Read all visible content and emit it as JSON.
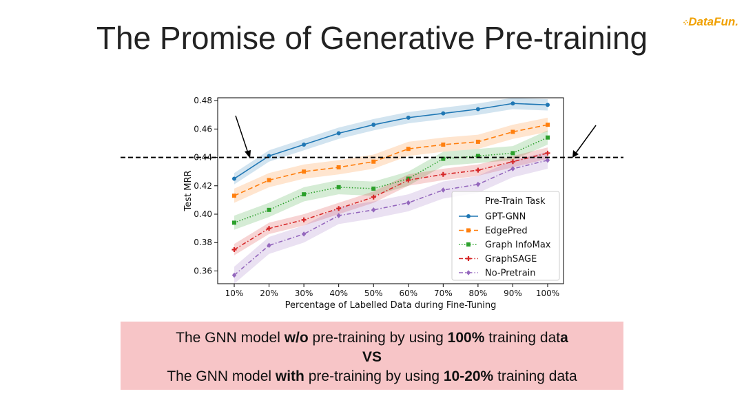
{
  "slide": {
    "title": "The Promise of Generative Pre-training",
    "logo": "DataFun."
  },
  "callout": {
    "line1_a": "The GNN model ",
    "line1_b": "w/o",
    "line1_c": " pre-training by using ",
    "line1_d": "100%",
    "line1_e": " training dat",
    "line1_f": "a",
    "line2": "VS",
    "line3_a": "The GNN model ",
    "line3_b": "with",
    "line3_c": " pre-training by using ",
    "line3_d": "10-20%",
    "line3_e": " training data"
  },
  "chart_data": {
    "type": "line",
    "title": "",
    "xlabel": "Percentage of Labelled Data during Fine-Tuning",
    "ylabel": "Test MRR",
    "categories": [
      "10%",
      "20%",
      "30%",
      "40%",
      "50%",
      "60%",
      "70%",
      "80%",
      "90%",
      "100%"
    ],
    "ylim": [
      0.351,
      0.482
    ],
    "yticks": [
      0.36,
      0.38,
      0.4,
      0.42,
      0.44,
      0.46,
      0.48
    ],
    "reference_line": 0.44,
    "legend_title": "Pre-Train Task",
    "legend_position": "bottom-right",
    "series": [
      {
        "name": "GPT-GNN",
        "color": "#1f77b4",
        "dash": "solid",
        "marker": "circle",
        "values": [
          0.425,
          0.441,
          0.449,
          0.457,
          0.463,
          0.468,
          0.471,
          0.474,
          0.478,
          0.477
        ],
        "band": 0.004
      },
      {
        "name": "EdgePred",
        "color": "#ff7f0e",
        "dash": "dashed",
        "marker": "square",
        "values": [
          0.413,
          0.424,
          0.43,
          0.433,
          0.437,
          0.446,
          0.449,
          0.451,
          0.458,
          0.463
        ],
        "band": 0.005
      },
      {
        "name": "Graph InfoMax",
        "color": "#2ca02c",
        "dash": "dotted",
        "marker": "square",
        "values": [
          0.394,
          0.403,
          0.414,
          0.419,
          0.418,
          0.425,
          0.439,
          0.441,
          0.443,
          0.454
        ],
        "band": 0.005
      },
      {
        "name": "GraphSAGE",
        "color": "#d62728",
        "dash": "dashdot",
        "marker": "plus",
        "values": [
          0.375,
          0.39,
          0.396,
          0.404,
          0.412,
          0.424,
          0.428,
          0.431,
          0.437,
          0.443
        ],
        "band": 0.004
      },
      {
        "name": "No-Pretrain",
        "color": "#9467bd",
        "dash": "dashdot",
        "marker": "diamond",
        "values": [
          0.357,
          0.378,
          0.386,
          0.399,
          0.403,
          0.408,
          0.417,
          0.421,
          0.432,
          0.438
        ],
        "band": 0.006
      }
    ]
  }
}
